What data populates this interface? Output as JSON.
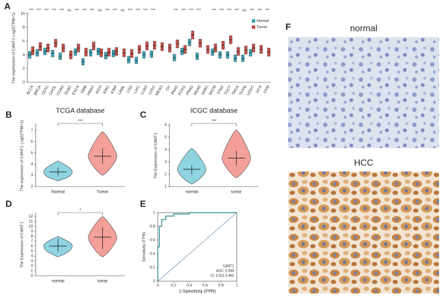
{
  "chart_data": [
    {
      "type": "box",
      "label": "A",
      "ylabel": "The expression of CANT1 Log2(TPM+1)",
      "categories": [
        "BLCA",
        "BRCA",
        "CESC",
        "CHOL",
        "COAD",
        "DLBC",
        "ESCA",
        "GBM",
        "HNSC",
        "KICH",
        "KIRC",
        "KIRP",
        "LAML",
        "LGG",
        "LIHC",
        "LUAD",
        "LUSC",
        "MESO",
        "OV",
        "PAAD",
        "PCPG",
        "PRAD",
        "READ",
        "SARC",
        "SKCM",
        "STAD",
        "TGCT",
        "THCA",
        "THYM",
        "UCEC",
        "UCS",
        "UVM"
      ],
      "significance": [
        "***",
        "***",
        "***",
        "***",
        "***",
        "ns",
        "***",
        "***",
        "***",
        "ns",
        "***",
        "***",
        "ns",
        "***",
        "***",
        "***",
        "***",
        null,
        null,
        "***",
        "***",
        "***",
        "***",
        null,
        "***",
        "***",
        "***",
        "***",
        "ns",
        "***",
        "***",
        "***"
      ],
      "ylim": [
        0,
        10
      ],
      "yticks": [
        0,
        2,
        4,
        6,
        8,
        10
      ],
      "series": [
        {
          "name": "Normal",
          "color": "#3aa6b9",
          "values": [
            4.0,
            4.3,
            4.5,
            4.2,
            3.8,
            null,
            4.4,
            3.0,
            4.3,
            4.5,
            3.9,
            4.2,
            null,
            3.3,
            3.2,
            4.0,
            4.1,
            null,
            null,
            3.6,
            4.5,
            5.8,
            3.8,
            null,
            4.4,
            4.0,
            4.0,
            3.5,
            3.5,
            4.3,
            null,
            null
          ],
          "q1": [
            3.5,
            3.8,
            4.0,
            3.7,
            3.3,
            null,
            3.9,
            2.5,
            3.8,
            4.0,
            3.4,
            3.7,
            null,
            2.8,
            2.7,
            3.5,
            3.6,
            null,
            null,
            3.1,
            4.0,
            5.3,
            3.3,
            null,
            3.9,
            3.5,
            3.5,
            3.0,
            3.0,
            3.8,
            null,
            null
          ],
          "q3": [
            4.5,
            4.8,
            5.0,
            4.7,
            4.3,
            null,
            4.9,
            3.5,
            4.8,
            5.0,
            4.4,
            4.7,
            null,
            3.8,
            3.7,
            4.5,
            4.6,
            null,
            null,
            4.1,
            5.0,
            6.3,
            4.3,
            null,
            4.9,
            4.5,
            4.5,
            4.0,
            4.0,
            4.8,
            null,
            null
          ]
        },
        {
          "name": "Tumor",
          "color": "#c8504a",
          "values": [
            4.6,
            5.2,
            5.0,
            5.7,
            5.0,
            4.0,
            5.0,
            4.4,
            5.3,
            4.3,
            4.4,
            4.5,
            4.3,
            4.2,
            4.8,
            5.3,
            5.4,
            5.2,
            5.0,
            5.6,
            4.8,
            6.9,
            5.7,
            4.8,
            5.0,
            5.4,
            6.2,
            4.5,
            4.7,
            5.0,
            4.8,
            4.4
          ],
          "q1": [
            4.0,
            4.6,
            4.4,
            5.1,
            4.4,
            3.4,
            4.4,
            3.8,
            4.7,
            3.7,
            3.8,
            3.9,
            3.7,
            3.6,
            4.2,
            4.7,
            4.8,
            4.6,
            4.4,
            5.0,
            4.2,
            6.3,
            5.1,
            4.2,
            4.4,
            4.8,
            5.6,
            3.9,
            4.1,
            4.4,
            4.2,
            3.8
          ],
          "q3": [
            5.2,
            5.8,
            5.6,
            6.3,
            5.6,
            4.6,
            5.6,
            5.0,
            5.9,
            4.9,
            5.0,
            5.1,
            4.9,
            4.8,
            5.4,
            5.9,
            6.0,
            5.8,
            5.6,
            6.2,
            5.4,
            7.5,
            6.3,
            5.4,
            5.6,
            6.0,
            6.8,
            5.1,
            5.3,
            5.6,
            5.4,
            5.0
          ]
        }
      ]
    },
    {
      "type": "violin",
      "label": "B",
      "title": "TCGA database",
      "ylabel": "The expression of CANT1 Log2(TPM+1)",
      "categories": [
        "Normal",
        "Tumor"
      ],
      "colors": [
        "#8fd3e0",
        "#f4a09a"
      ],
      "significance": "***",
      "values": [
        3.3,
        4.7
      ],
      "q1": [
        3.0,
        4.0
      ],
      "q3": [
        3.7,
        5.4
      ],
      "min": [
        2.5,
        3.0
      ],
      "max": [
        4.3,
        6.9
      ],
      "ylim": [
        2,
        7.5
      ],
      "yticks": [
        2,
        3,
        4,
        5,
        6,
        7
      ]
    },
    {
      "type": "violin",
      "label": "C",
      "title": "ICGC database",
      "ylabel": "The Expression of CANT1",
      "categories": [
        "normal",
        "tumor"
      ],
      "colors": [
        "#8fd3e0",
        "#f4a09a"
      ],
      "significance": "***",
      "values": [
        2.4,
        3.3
      ],
      "q1": [
        2.0,
        2.7
      ],
      "q3": [
        2.7,
        3.9
      ],
      "min": [
        1.2,
        1.7
      ],
      "max": [
        4.1,
        5.6
      ],
      "ylim": [
        1,
        6
      ],
      "yticks": [
        1,
        2,
        3,
        4,
        5,
        6
      ]
    },
    {
      "type": "violin",
      "label": "D",
      "ylabel": "The Expression of CANT1",
      "categories": [
        "normal",
        "tumor"
      ],
      "colors": [
        "#8fd3e0",
        "#f4a09a"
      ],
      "significance": "*",
      "values": [
        6,
        7.8
      ],
      "q1": [
        4.9,
        5.4
      ],
      "q3": [
        7.5,
        9.8
      ],
      "min": [
        3.8,
        3.8
      ],
      "max": [
        8,
        12
      ],
      "ylim": [
        0,
        12.5
      ],
      "yticks": [
        0,
        1,
        2,
        3,
        4,
        5,
        6,
        7,
        8,
        9,
        10,
        11,
        12
      ]
    },
    {
      "type": "line",
      "label": "E",
      "xlabel": "1-Specificity (FPR)",
      "ylabel": "Sensitivity (TPR)",
      "x": [
        0,
        0,
        0.02,
        0.02,
        0.05,
        0.05,
        0.1,
        0.1,
        0.2,
        0.2,
        0.4,
        0.4,
        1
      ],
      "y": [
        0,
        0.5,
        0.5,
        0.8,
        0.8,
        0.9,
        0.9,
        0.95,
        0.95,
        0.98,
        0.98,
        1,
        1
      ],
      "color": "#1f8a8a",
      "xlim": [
        0,
        1
      ],
      "ylim": [
        0,
        1
      ],
      "xticks": [
        0,
        0.2,
        0.4,
        0.6,
        0.8,
        1
      ],
      "yticks": [
        0,
        0.2,
        0.4,
        0.6,
        0.8,
        1
      ],
      "annotations": [
        "CANT1",
        "AUC: 0.938",
        "CI: 0.911-0.965"
      ]
    }
  ],
  "figure_panels": {
    "label": "F",
    "images": [
      {
        "caption": "normal"
      },
      {
        "caption": "HCC"
      }
    ]
  }
}
